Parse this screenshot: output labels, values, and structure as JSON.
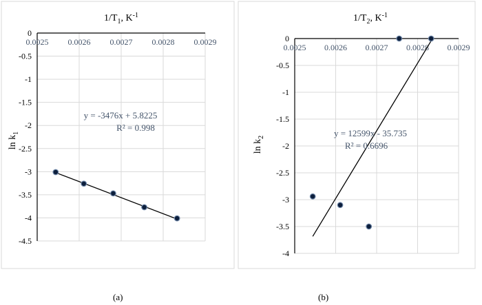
{
  "chart_data": [
    {
      "type": "scatter",
      "panel_label": "(a)",
      "title_main": "1/T",
      "title_sub": "1",
      "title_tail": ", K",
      "title_sup": "-1",
      "ylabel_main": "ln k",
      "ylabel_sub": "1",
      "xlim": [
        0.0025,
        0.0029
      ],
      "ylim": [
        -4.5,
        0
      ],
      "x_ticks": [
        "0.0025",
        "0.0026",
        "0.0027",
        "0.0028",
        "0.0029"
      ],
      "y_ticks": [
        "0",
        "-0.5",
        "-1",
        "-1.5",
        "-2",
        "-2.5",
        "-3",
        "-3.5",
        "-4",
        "-4.5"
      ],
      "x": [
        0.002544,
        0.002611,
        0.002681,
        0.002755,
        0.002833
      ],
      "y": [
        -3.01,
        -3.26,
        -3.47,
        -3.77,
        -4.01
      ],
      "trendline": {
        "slope": -3476,
        "intercept": 5.8225,
        "x_range": [
          0.002544,
          0.002833
        ]
      },
      "equation": "y = -3476x + 5.8225",
      "r_squared": "R² = 0.998",
      "grid": true,
      "colors": {
        "marker": "#0d1f3c",
        "marker_edge": "#6f87a8",
        "line": "#000000",
        "grid": "#d9d9d9",
        "text": "#44546a"
      }
    },
    {
      "type": "scatter",
      "panel_label": "(b)",
      "title_main": "1/T",
      "title_sub": "2",
      "title_tail": ", K",
      "title_sup": "-1",
      "ylabel_main": "ln k",
      "ylabel_sub": "2",
      "xlim": [
        0.0025,
        0.0029
      ],
      "ylim": [
        -4,
        0
      ],
      "x_ticks": [
        "0.0025",
        "0.0026",
        "0.0027",
        "0.0028",
        "0.0029"
      ],
      "y_ticks": [
        "0",
        "-0.5",
        "-1",
        "-1.5",
        "-2",
        "-2.5",
        "-3",
        "-3.5",
        "-4"
      ],
      "x": [
        0.002544,
        0.002611,
        0.002681,
        0.002755,
        0.002833
      ],
      "y": [
        -2.94,
        -3.1,
        -3.5,
        0,
        0
      ],
      "trendline": {
        "slope": 12599,
        "intercept": -35.735,
        "x_range": [
          0.002544,
          0.002833
        ]
      },
      "equation": "y = 12599x - 35.735",
      "r_squared": "R² = 0.6696",
      "grid": true,
      "colors": {
        "marker": "#0d1f3c",
        "marker_edge": "#6f87a8",
        "line": "#000000",
        "grid": "#d9d9d9",
        "text": "#44546a"
      }
    }
  ]
}
